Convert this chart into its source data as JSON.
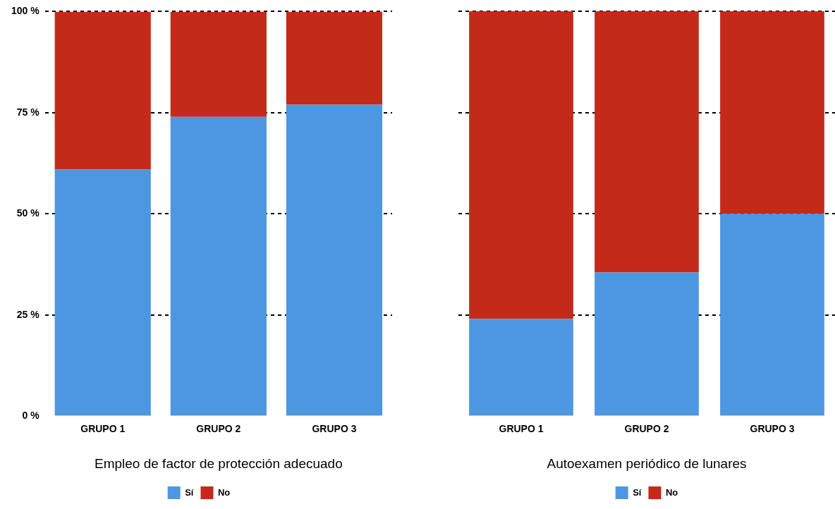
{
  "chart_data": [
    {
      "type": "bar",
      "xlabel": "Empleo de factor de protección adecuado",
      "categories": [
        "GRUPO 1",
        "GRUPO 2",
        "GRUPO 3"
      ],
      "stacked": true,
      "series": [
        {
          "name": "Sí",
          "color": "#4d97e0",
          "values": [
            61,
            74,
            77
          ]
        },
        {
          "name": "No",
          "color": "#c42a1a",
          "values": [
            39,
            26,
            23
          ]
        }
      ],
      "ylim": [
        0,
        100
      ],
      "yticks": [
        {
          "value": 0,
          "label": "0 %"
        },
        {
          "value": 25,
          "label": "25 %"
        },
        {
          "value": 50,
          "label": "50 %"
        },
        {
          "value": 75,
          "label": "75 %"
        },
        {
          "value": 100,
          "label": "100 %"
        }
      ],
      "grid": "y",
      "legend": "bottom"
    },
    {
      "type": "bar",
      "xlabel": "Autoexamen periódico de lunares",
      "categories": [
        "GRUPO 1",
        "GRUPO 2",
        "GRUPO 3"
      ],
      "stacked": true,
      "series": [
        {
          "name": "Sí",
          "color": "#4d97e0",
          "values": [
            24,
            35.5,
            50
          ]
        },
        {
          "name": "No",
          "color": "#c42a1a",
          "values": [
            76,
            64.5,
            50
          ]
        }
      ],
      "ylim": [
        0,
        100
      ],
      "yticks": [
        0,
        25,
        50,
        75,
        100
      ],
      "grid": "y",
      "legend": "bottom",
      "tick_labels": "x"
    }
  ]
}
